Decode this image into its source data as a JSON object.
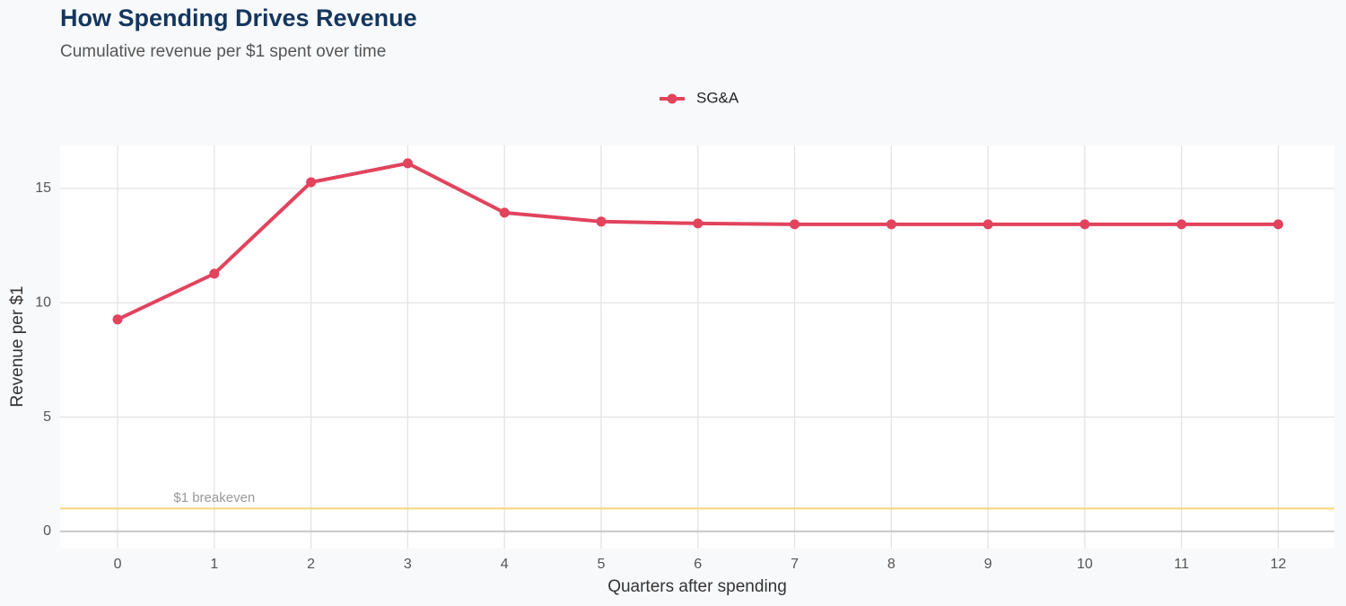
{
  "chart_data": {
    "type": "line",
    "title": "How Spending Drives Revenue",
    "subtitle": "Cumulative revenue per $1 spent over time",
    "x_label": "Quarters after spending",
    "y_label": "Revenue per $1",
    "x": [
      0,
      1,
      2,
      3,
      4,
      5,
      6,
      7,
      8,
      9,
      10,
      11,
      12
    ],
    "series": [
      {
        "name": "SG&A",
        "color": "#e2435d",
        "values": [
          9.27,
          11.27,
          15.27,
          16.1,
          13.94,
          13.55,
          13.47,
          13.43,
          13.43,
          13.43,
          13.43,
          13.43,
          13.43
        ]
      }
    ],
    "xlim": [
      -0.594,
      12.58
    ],
    "xticks": [
      0,
      1,
      2,
      3,
      4,
      5,
      6,
      7,
      8,
      9,
      10,
      11,
      12
    ],
    "ylim": [
      -0.75,
      16.88
    ],
    "yticks": [
      0,
      5,
      10,
      15
    ],
    "grid": true,
    "legend": "top",
    "hlines": [
      {
        "y": 0,
        "color": "#c8c8c8"
      },
      {
        "y": 1,
        "color": "#f6d57a"
      }
    ],
    "annotations": [
      {
        "text": "$1 breakeven",
        "x": 1,
        "y": 1.45
      }
    ]
  }
}
